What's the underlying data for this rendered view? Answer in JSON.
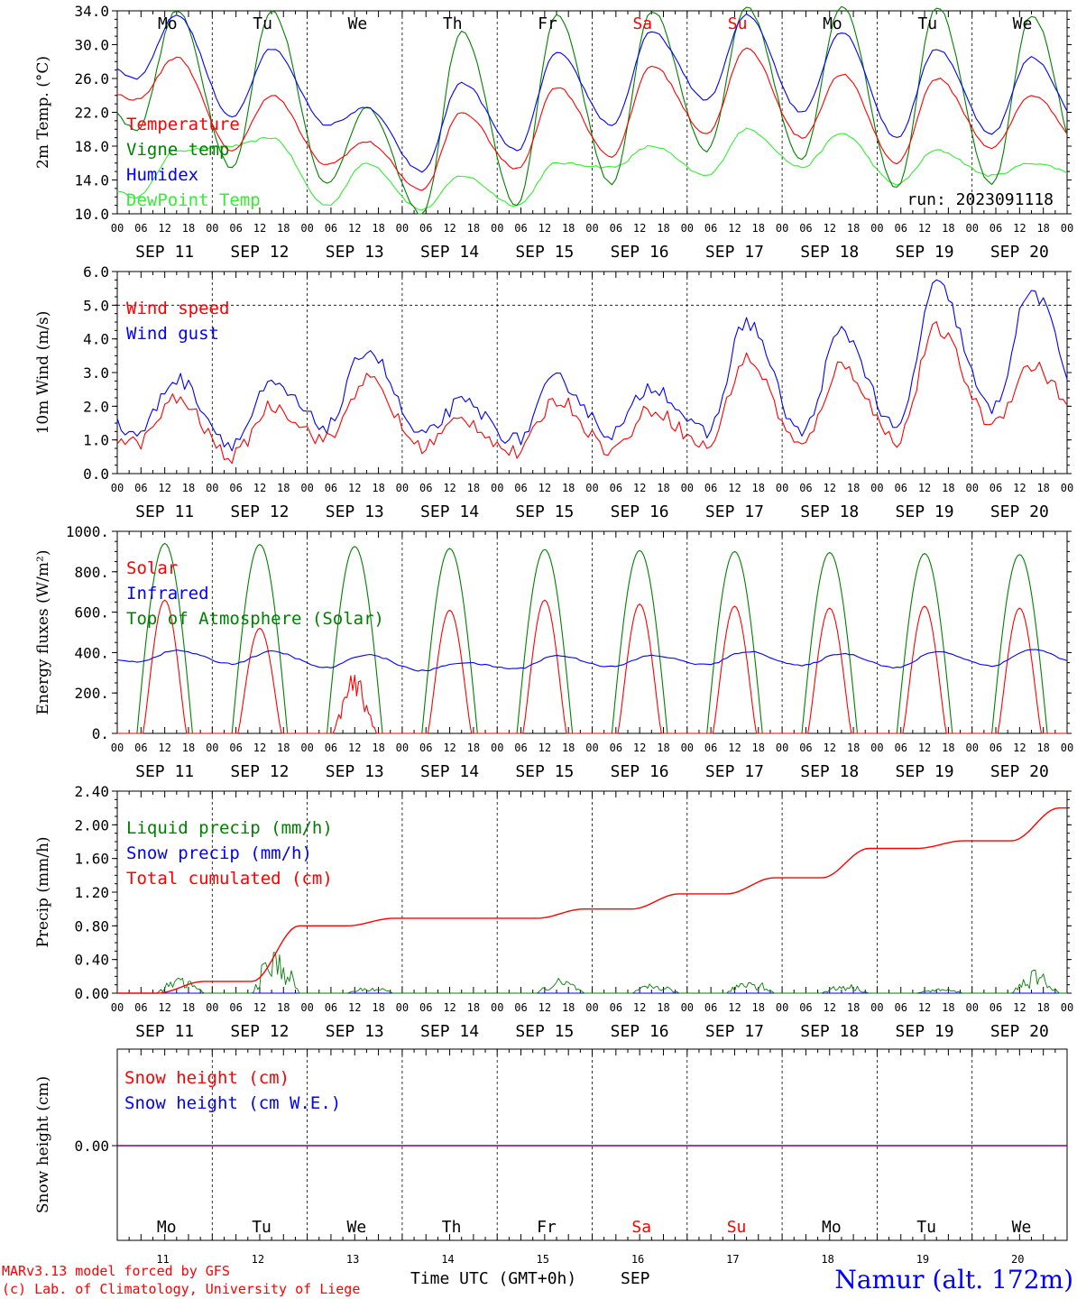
{
  "run_label": "run: 2023091118",
  "station": "Namur (alt. 172m)",
  "credit_line1": "MARv3.13 model forced by GFS",
  "credit_line2": "(c) Lab. of Climatology, University of Liege",
  "time_axis_title": "Time UTC (GMT+0h)",
  "month_label": "SEP",
  "hour_ticks": [
    "00",
    "06",
    "12",
    "18"
  ],
  "day_labels": [
    "SEP 11",
    "SEP 12",
    "SEP 13",
    "SEP 14",
    "SEP 15",
    "SEP 16",
    "SEP 17",
    "SEP 18",
    "SEP 19",
    "SEP 20"
  ],
  "day_numbers": [
    "11",
    "12",
    "13",
    "14",
    "15",
    "16",
    "17",
    "18",
    "19",
    "20"
  ],
  "weekdays": [
    "Mo",
    "Tu",
    "We",
    "Th",
    "Fr",
    "Sa",
    "Su",
    "Mo",
    "Tu",
    "We"
  ],
  "weekend_indices": [
    5,
    6
  ],
  "colors": {
    "red": "#ff0000",
    "green": "#008000",
    "blue": "#0000ff",
    "lightgreen": "#33ee33",
    "purple": "#800080",
    "axis": "#000000"
  },
  "chart_data": [
    {
      "type": "line",
      "ylabel": "2m Temp. (°C)",
      "ylim": [
        10,
        34
      ],
      "yticks": [
        "10.0",
        "14.0",
        "18.0",
        "22.0",
        "26.0",
        "30.0",
        "34.0"
      ],
      "x_days": 10,
      "series": [
        {
          "name": "Temperature",
          "color": "#ff0000",
          "day_min": [
            23.5,
            17.5,
            15.8,
            12.8,
            15.3,
            16.8,
            19.5,
            19.0,
            16.0,
            17.8
          ],
          "day_max": [
            28.5,
            24.0,
            18.5,
            22.0,
            25.0,
            27.5,
            29.5,
            26.5,
            26.0,
            24.0
          ]
        },
        {
          "name": "Vigne temp",
          "color": "#008000",
          "day_min": [
            20.0,
            15.5,
            13.5,
            10.0,
            11.0,
            13.5,
            17.5,
            16.5,
            13.0,
            13.5
          ],
          "day_max": [
            34.0,
            34.0,
            22.5,
            31.5,
            33.5,
            34.0,
            34.5,
            34.5,
            34.5,
            33.5
          ]
        },
        {
          "name": "Humidex",
          "color": "#0000ff",
          "day_min": [
            26.0,
            21.5,
            20.5,
            15.0,
            17.5,
            20.5,
            23.5,
            22.0,
            19.0,
            19.5
          ],
          "day_max": [
            33.5,
            29.5,
            22.5,
            25.5,
            29.0,
            31.5,
            33.5,
            31.5,
            29.5,
            28.5
          ]
        },
        {
          "name": "DewPoint Temp",
          "color": "#33ee33",
          "day_min": [
            12.0,
            18.0,
            11.0,
            10.5,
            11.0,
            15.5,
            14.5,
            15.5,
            13.5,
            14.5
          ],
          "day_max": [
            17.5,
            19.0,
            16.0,
            14.5,
            16.0,
            18.0,
            20.0,
            19.5,
            17.5,
            16.0
          ]
        }
      ]
    },
    {
      "type": "line",
      "ylabel": "10m Wind (m/s)",
      "ylim": [
        0,
        6
      ],
      "yticks": [
        "0.0",
        "1.0",
        "2.0",
        "3.0",
        "4.0",
        "5.0",
        "6.0"
      ],
      "reference_line": 5.0,
      "series": [
        {
          "name": "Wind speed",
          "color": "#ff0000",
          "day_min": [
            0.9,
            0.5,
            1.0,
            0.8,
            0.6,
            0.7,
            0.8,
            0.8,
            1.0,
            1.5
          ],
          "day_max": [
            2.2,
            2.0,
            2.8,
            1.6,
            2.2,
            1.9,
            3.4,
            3.2,
            4.3,
            3.2
          ]
        },
        {
          "name": "Wind gust",
          "color": "#0000ff",
          "day_min": [
            1.2,
            0.9,
            1.4,
            1.1,
            1.0,
            1.2,
            1.2,
            1.2,
            1.3,
            1.9
          ],
          "day_max": [
            2.8,
            2.6,
            3.7,
            2.1,
            2.8,
            2.6,
            4.5,
            4.2,
            5.6,
            5.4
          ]
        }
      ]
    },
    {
      "type": "line",
      "ylabel": "Energy fluxes (W/m²)",
      "ylim": [
        0,
        1000
      ],
      "yticks": [
        "0.",
        "200.",
        "400.",
        "600.",
        "800.",
        "1000."
      ],
      "series": [
        {
          "name": "Solar",
          "color": "#ff0000",
          "day_peak": [
            660,
            520,
            300,
            610,
            660,
            640,
            630,
            620,
            630,
            620
          ]
        },
        {
          "name": "Infrared",
          "color": "#0000ff",
          "day_min": [
            355,
            345,
            325,
            310,
            320,
            330,
            340,
            335,
            325,
            335
          ],
          "day_max": [
            410,
            405,
            390,
            350,
            385,
            385,
            405,
            395,
            405,
            415
          ]
        },
        {
          "name": "Top of Atmosphere (Solar)",
          "color": "#008000",
          "day_peak": [
            940,
            935,
            925,
            915,
            910,
            905,
            900,
            895,
            890,
            885
          ]
        }
      ]
    },
    {
      "type": "line",
      "ylabel": "Precip (mm/h)",
      "ylim": [
        0,
        2.4
      ],
      "yticks": [
        "0.00",
        "0.40",
        "0.80",
        "1.20",
        "1.60",
        "2.00",
        "2.40"
      ],
      "series": [
        {
          "name": "Liquid precip (mm/h)",
          "color": "#008000",
          "day_peak": [
            0.2,
            0.55,
            0.08,
            0.0,
            0.18,
            0.12,
            0.2,
            0.12,
            0.06,
            0.28
          ]
        },
        {
          "name": "Snow precip (mm/h)",
          "color": "#0000ff",
          "day_peak": [
            0,
            0,
            0,
            0,
            0,
            0,
            0,
            0,
            0,
            0
          ]
        },
        {
          "name": "Total cumulated (cm)",
          "color": "#ff0000",
          "day_end": [
            0.14,
            0.8,
            0.89,
            0.89,
            1.0,
            1.18,
            1.37,
            1.72,
            1.81,
            2.2
          ]
        }
      ]
    },
    {
      "type": "line",
      "ylabel": "Snow height (cm)",
      "yticks": [
        "0.00"
      ],
      "series": [
        {
          "name": "Snow height (cm)",
          "color": "#ff0000",
          "values": [
            0.0
          ]
        },
        {
          "name": "Snow height (cm W.E.)",
          "color": "#0000ff",
          "values": [
            0.0
          ]
        }
      ]
    }
  ]
}
